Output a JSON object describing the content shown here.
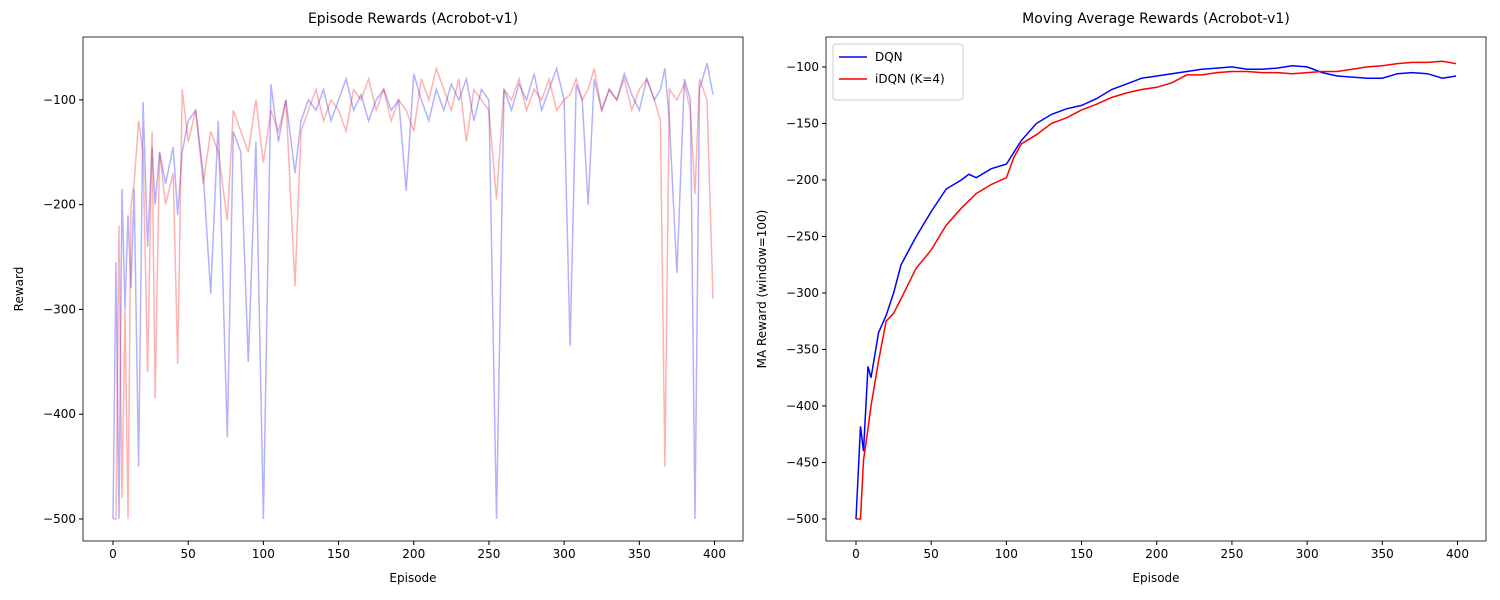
{
  "chart_data": [
    {
      "type": "line",
      "title": "Episode Rewards (Acrobot-v1)",
      "xlabel": "Episode",
      "ylabel": "Reward",
      "alpha": 0.3,
      "x": [
        0,
        2,
        4,
        6,
        8,
        10,
        12,
        14,
        17,
        20,
        23,
        26,
        28,
        31,
        35,
        40,
        43,
        46,
        50,
        55,
        60,
        65,
        70,
        76,
        80,
        85,
        90,
        95,
        100,
        105,
        110,
        115,
        121,
        125,
        130,
        135,
        140,
        145,
        150,
        155,
        160,
        165,
        170,
        175,
        180,
        185,
        190,
        195,
        200,
        205,
        210,
        215,
        220,
        225,
        230,
        235,
        240,
        245,
        250,
        255,
        260,
        265,
        270,
        275,
        280,
        285,
        290,
        295,
        300,
        304,
        308,
        312,
        316,
        320,
        325,
        330,
        335,
        340,
        345,
        350,
        355,
        360,
        364,
        367,
        370,
        375,
        380,
        384,
        387,
        390,
        395,
        399
      ],
      "series": [
        {
          "name": "DQN",
          "color": "#0000ff",
          "values": [
            -500,
            -255,
            -500,
            -185,
            -300,
            -210,
            -280,
            -185,
            -450,
            -102,
            -240,
            -145,
            -200,
            -150,
            -180,
            -145,
            -210,
            -150,
            -120,
            -110,
            -170,
            -285,
            -120,
            -422,
            -130,
            -150,
            -350,
            -140,
            -500,
            -85,
            -140,
            -100,
            -170,
            -120,
            -100,
            -110,
            -90,
            -120,
            -100,
            -80,
            -110,
            -95,
            -120,
            -100,
            -90,
            -110,
            -100,
            -187,
            -75,
            -100,
            -120,
            -90,
            -110,
            -85,
            -100,
            -80,
            -120,
            -90,
            -100,
            -500,
            -90,
            -110,
            -85,
            -100,
            -75,
            -110,
            -90,
            -70,
            -100,
            -335,
            -85,
            -100,
            -200,
            -80,
            -110,
            -90,
            -100,
            -75,
            -95,
            -110,
            -80,
            -100,
            -90,
            -70,
            -120,
            -265,
            -80,
            -100,
            -500,
            -90,
            -65,
            -95
          ]
        },
        {
          "name": "iDQN (K=4)",
          "color": "#ff0000",
          "values": [
            -500,
            -500,
            -220,
            -480,
            -300,
            -500,
            -200,
            -180,
            -120,
            -150,
            -360,
            -130,
            -385,
            -150,
            -200,
            -170,
            -352,
            -90,
            -140,
            -110,
            -180,
            -130,
            -150,
            -215,
            -110,
            -130,
            -150,
            -100,
            -160,
            -110,
            -130,
            -100,
            -278,
            -130,
            -110,
            -90,
            -120,
            -100,
            -110,
            -130,
            -90,
            -100,
            -80,
            -110,
            -90,
            -120,
            -100,
            -110,
            -130,
            -80,
            -100,
            -70,
            -90,
            -110,
            -80,
            -140,
            -90,
            -100,
            -110,
            -195,
            -90,
            -100,
            -80,
            -110,
            -90,
            -100,
            -80,
            -110,
            -100,
            -95,
            -80,
            -100,
            -90,
            -70,
            -110,
            -90,
            -100,
            -80,
            -110,
            -90,
            -80,
            -100,
            -120,
            -450,
            -90,
            -100,
            -85,
            -110,
            -190,
            -80,
            -100,
            -290
          ]
        }
      ],
      "xlim": [
        -19.95,
        418.95
      ],
      "ylim": [
        -521,
        -40
      ],
      "xticks": [
        0,
        50,
        100,
        150,
        200,
        250,
        300,
        350,
        400
      ],
      "yticks": [
        {
          "value": -500,
          "label": "−500"
        },
        {
          "value": -400,
          "label": "−400"
        },
        {
          "value": -300,
          "label": "−300"
        },
        {
          "value": -200,
          "label": "−200"
        },
        {
          "value": -100,
          "label": "−100"
        }
      ]
    },
    {
      "type": "line",
      "title": "Moving Average Rewards (Acrobot-v1)",
      "xlabel": "Episode",
      "ylabel": "MA Reward (window=100)",
      "legend": "upper left",
      "series": [
        {
          "name": "DQN",
          "color": "#0000ff",
          "x": [
            0,
            3,
            5,
            8,
            10,
            15,
            20,
            25,
            30,
            40,
            50,
            60,
            70,
            75,
            80,
            90,
            100,
            110,
            120,
            130,
            140,
            150,
            160,
            170,
            180,
            190,
            200,
            210,
            220,
            230,
            240,
            250,
            260,
            270,
            280,
            290,
            300,
            310,
            320,
            330,
            340,
            350,
            360,
            370,
            380,
            390,
            399
          ],
          "values": [
            -500,
            -418,
            -440,
            -365,
            -375,
            -335,
            -320,
            -300,
            -275,
            -250,
            -228,
            -208,
            -200,
            -195,
            -198,
            -190,
            -186,
            -165,
            -150,
            -142,
            -137,
            -134,
            -128,
            -120,
            -115,
            -110,
            -108,
            -106,
            -104,
            -102,
            -101,
            -100,
            -102,
            -102,
            -101,
            -99,
            -100,
            -105,
            -108,
            -109,
            -110,
            -110,
            -106,
            -105,
            -106,
            -110,
            -108
          ]
        },
        {
          "name": "iDQN (K=4)",
          "color": "#ff0000",
          "x": [
            0,
            3,
            5,
            8,
            10,
            15,
            20,
            25,
            30,
            40,
            50,
            60,
            70,
            80,
            90,
            100,
            105,
            110,
            120,
            130,
            140,
            150,
            160,
            170,
            180,
            190,
            200,
            210,
            220,
            230,
            240,
            250,
            260,
            270,
            280,
            290,
            300,
            310,
            320,
            330,
            340,
            350,
            360,
            370,
            380,
            390,
            399
          ],
          "values": [
            -500,
            -500,
            -448,
            -420,
            -400,
            -360,
            -325,
            -318,
            -305,
            -278,
            -262,
            -240,
            -225,
            -212,
            -204,
            -198,
            -180,
            -168,
            -160,
            -150,
            -145,
            -138,
            -133,
            -127,
            -123,
            -120,
            -118,
            -114,
            -107,
            -107,
            -105,
            -104,
            -104,
            -105,
            -105,
            -106,
            -105,
            -104,
            -104,
            -102,
            -100,
            -99,
            -97,
            -96,
            -96,
            -95,
            -97
          ]
        }
      ],
      "xlim": [
        -19.95,
        418.95
      ],
      "ylim": [
        -519.5,
        -73.5
      ],
      "xticks": [
        0,
        50,
        100,
        150,
        200,
        250,
        300,
        350,
        400
      ],
      "yticks": [
        {
          "value": -500,
          "label": "−500"
        },
        {
          "value": -450,
          "label": "−450"
        },
        {
          "value": -400,
          "label": "−400"
        },
        {
          "value": -350,
          "label": "−350"
        },
        {
          "value": -300,
          "label": "−300"
        },
        {
          "value": -250,
          "label": "−250"
        },
        {
          "value": -200,
          "label": "−200"
        },
        {
          "value": -150,
          "label": "−150"
        },
        {
          "value": -100,
          "label": "−100"
        }
      ]
    }
  ]
}
